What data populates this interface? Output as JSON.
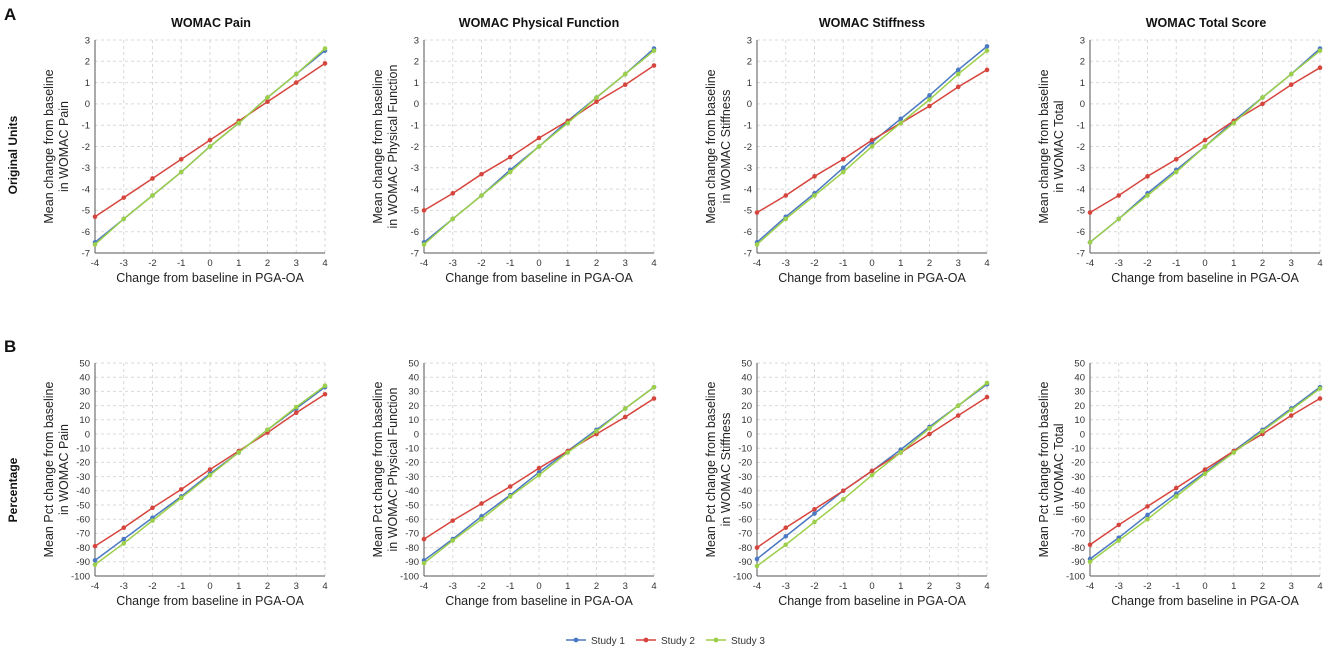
{
  "panel_tags": [
    "A",
    "B"
  ],
  "row_labels": [
    "Original Units",
    "Percentage"
  ],
  "column_titles": [
    "WOMAC Pain",
    "WOMAC Physical Function",
    "WOMAC Stiffness",
    "WOMAC Total Score"
  ],
  "legend": [
    {
      "name": "Study 1",
      "color": "#4a78c2"
    },
    {
      "name": "Study 2",
      "color": "#d6453d"
    },
    {
      "name": "Study 3",
      "color": "#9ccf4a"
    }
  ],
  "chart_data": [
    {
      "type": "line",
      "row": 0,
      "col": 0,
      "xlabel": "Change from baseline in PGA-OA",
      "ylabel": [
        "Mean change from baseline",
        "in WOMAC Pain"
      ],
      "x": [
        -4,
        -3,
        -2,
        -1,
        0,
        1,
        2,
        3,
        4
      ],
      "xlim": [
        -4,
        4
      ],
      "ylim": [
        -7,
        3
      ],
      "yticks": [
        -7,
        -6,
        -5,
        -4,
        -3,
        -2,
        -1,
        0,
        1,
        2,
        3
      ],
      "series": [
        {
          "name": "Study 1",
          "values": [
            -6.5,
            -5.4,
            -4.3,
            -3.2,
            -2.0,
            -0.9,
            0.3,
            1.4,
            2.5
          ]
        },
        {
          "name": "Study 2",
          "values": [
            -5.3,
            -4.4,
            -3.5,
            -2.6,
            -1.7,
            -0.8,
            0.1,
            1.0,
            1.9
          ]
        },
        {
          "name": "Study 3",
          "values": [
            -6.6,
            -5.4,
            -4.3,
            -3.2,
            -2.0,
            -0.9,
            0.3,
            1.4,
            2.6
          ]
        }
      ]
    },
    {
      "type": "line",
      "row": 0,
      "col": 1,
      "xlabel": "Change from baseline in PGA-OA",
      "ylabel": [
        "Mean change from baseline",
        "in WOMAC Physical Function"
      ],
      "x": [
        -4,
        -3,
        -2,
        -1,
        0,
        1,
        2,
        3,
        4
      ],
      "xlim": [
        -4,
        4
      ],
      "ylim": [
        -7,
        3
      ],
      "yticks": [
        -7,
        -6,
        -5,
        -4,
        -3,
        -2,
        -1,
        0,
        1,
        2,
        3
      ],
      "series": [
        {
          "name": "Study 1",
          "values": [
            -6.5,
            -5.4,
            -4.3,
            -3.1,
            -2.0,
            -0.8,
            0.3,
            1.4,
            2.6
          ]
        },
        {
          "name": "Study 2",
          "values": [
            -5.0,
            -4.2,
            -3.3,
            -2.5,
            -1.6,
            -0.8,
            0.1,
            0.9,
            1.8
          ]
        },
        {
          "name": "Study 3",
          "values": [
            -6.6,
            -5.4,
            -4.3,
            -3.2,
            -2.0,
            -0.9,
            0.3,
            1.4,
            2.5
          ]
        }
      ]
    },
    {
      "type": "line",
      "row": 0,
      "col": 2,
      "xlabel": "Change from baseline in PGA-OA",
      "ylabel": [
        "Mean change from baseline",
        "in WOMAC Stiffness"
      ],
      "x": [
        -4,
        -3,
        -2,
        -1,
        0,
        1,
        2,
        3,
        4
      ],
      "xlim": [
        -4,
        4
      ],
      "ylim": [
        -7,
        3
      ],
      "yticks": [
        -7,
        -6,
        -5,
        -4,
        -3,
        -2,
        -1,
        0,
        1,
        2,
        3
      ],
      "series": [
        {
          "name": "Study 1",
          "values": [
            -6.5,
            -5.3,
            -4.2,
            -3.0,
            -1.8,
            -0.7,
            0.4,
            1.6,
            2.7
          ]
        },
        {
          "name": "Study 2",
          "values": [
            -5.1,
            -4.3,
            -3.4,
            -2.6,
            -1.7,
            -0.9,
            -0.1,
            0.8,
            1.6
          ]
        },
        {
          "name": "Study 3",
          "values": [
            -6.6,
            -5.4,
            -4.3,
            -3.2,
            -2.0,
            -0.9,
            0.2,
            1.4,
            2.5
          ]
        }
      ]
    },
    {
      "type": "line",
      "row": 0,
      "col": 3,
      "xlabel": "Change from baseline in PGA-OA",
      "ylabel": [
        "Mean change from baseline",
        "in WOMAC Total"
      ],
      "x": [
        -4,
        -3,
        -2,
        -1,
        0,
        1,
        2,
        3,
        4
      ],
      "xlim": [
        -4,
        4
      ],
      "ylim": [
        -7,
        3
      ],
      "yticks": [
        -7,
        -6,
        -5,
        -4,
        -3,
        -2,
        -1,
        0,
        1,
        2,
        3
      ],
      "series": [
        {
          "name": "Study 1",
          "values": [
            -6.5,
            -5.4,
            -4.2,
            -3.1,
            -2.0,
            -0.8,
            0.3,
            1.4,
            2.6
          ]
        },
        {
          "name": "Study 2",
          "values": [
            -5.1,
            -4.3,
            -3.4,
            -2.6,
            -1.7,
            -0.8,
            0.0,
            0.9,
            1.7
          ]
        },
        {
          "name": "Study 3",
          "values": [
            -6.5,
            -5.4,
            -4.3,
            -3.2,
            -2.0,
            -0.9,
            0.3,
            1.4,
            2.5
          ]
        }
      ]
    },
    {
      "type": "line",
      "row": 1,
      "col": 0,
      "xlabel": "Change from baseline in PGA-OA",
      "ylabel": [
        "Mean Pct change from baseline",
        "in WOMAC Pain"
      ],
      "x": [
        -4,
        -3,
        -2,
        -1,
        0,
        1,
        2,
        3,
        4
      ],
      "xlim": [
        -4,
        4
      ],
      "ylim": [
        -100,
        50
      ],
      "yticks": [
        -100,
        -90,
        -80,
        -70,
        -60,
        -50,
        -40,
        -30,
        -20,
        -10,
        0,
        10,
        20,
        30,
        40,
        50
      ],
      "series": [
        {
          "name": "Study 1",
          "values": [
            -89,
            -74,
            -59,
            -44,
            -28,
            -13,
            3,
            18,
            33
          ]
        },
        {
          "name": "Study 2",
          "values": [
            -79,
            -66,
            -52,
            -39,
            -25,
            -12,
            1,
            15,
            28
          ]
        },
        {
          "name": "Study 3",
          "values": [
            -92,
            -77,
            -61,
            -45,
            -29,
            -13,
            3,
            19,
            34
          ]
        }
      ]
    },
    {
      "type": "line",
      "row": 1,
      "col": 1,
      "xlabel": "Change from baseline in PGA-OA",
      "ylabel": [
        "Mean Pct change from baseline",
        "in WOMAC Physical Function"
      ],
      "x": [
        -4,
        -3,
        -2,
        -1,
        0,
        1,
        2,
        3,
        4
      ],
      "xlim": [
        -4,
        4
      ],
      "ylim": [
        -100,
        50
      ],
      "yticks": [
        -100,
        -90,
        -80,
        -70,
        -60,
        -50,
        -40,
        -30,
        -20,
        -10,
        0,
        10,
        20,
        30,
        40,
        50
      ],
      "series": [
        {
          "name": "Study 1",
          "values": [
            -89,
            -74,
            -58,
            -43,
            -27,
            -12,
            3,
            18,
            33
          ]
        },
        {
          "name": "Study 2",
          "values": [
            -74,
            -61,
            -49,
            -37,
            -24,
            -12,
            0,
            12,
            25
          ]
        },
        {
          "name": "Study 3",
          "values": [
            -91,
            -75,
            -60,
            -44,
            -29,
            -13,
            2,
            18,
            33
          ]
        }
      ]
    },
    {
      "type": "line",
      "row": 1,
      "col": 2,
      "xlabel": "Change from baseline in PGA-OA",
      "ylabel": [
        "Mean Pct change from baseline",
        "in WOMAC Stiffness"
      ],
      "x": [
        -4,
        -3,
        -2,
        -1,
        0,
        1,
        2,
        3,
        4
      ],
      "xlim": [
        -4,
        4
      ],
      "ylim": [
        -100,
        50
      ],
      "yticks": [
        -100,
        -90,
        -80,
        -70,
        -60,
        -50,
        -40,
        -30,
        -20,
        -10,
        0,
        10,
        20,
        30,
        40,
        50
      ],
      "series": [
        {
          "name": "Study 1",
          "values": [
            -88,
            -72,
            -56,
            -40,
            -26,
            -11,
            5,
            20,
            35
          ]
        },
        {
          "name": "Study 2",
          "values": [
            -80,
            -66,
            -53,
            -40,
            -26,
            -13,
            0,
            13,
            26
          ]
        },
        {
          "name": "Study 3",
          "values": [
            -93,
            -78,
            -62,
            -46,
            -29,
            -13,
            4,
            20,
            36
          ]
        }
      ]
    },
    {
      "type": "line",
      "row": 1,
      "col": 3,
      "xlabel": "Change from baseline in PGA-OA",
      "ylabel": [
        "Mean Pct change from baseline",
        "in WOMAC Total"
      ],
      "x": [
        -4,
        -3,
        -2,
        -1,
        0,
        1,
        2,
        3,
        4
      ],
      "xlim": [
        -4,
        4
      ],
      "ylim": [
        -100,
        50
      ],
      "yticks": [
        -100,
        -90,
        -80,
        -70,
        -60,
        -50,
        -40,
        -30,
        -20,
        -10,
        0,
        10,
        20,
        30,
        40,
        50
      ],
      "series": [
        {
          "name": "Study 1",
          "values": [
            -88,
            -73,
            -57,
            -42,
            -27,
            -12,
            3,
            18,
            33
          ]
        },
        {
          "name": "Study 2",
          "values": [
            -78,
            -64,
            -51,
            -38,
            -25,
            -12,
            0,
            13,
            25
          ]
        },
        {
          "name": "Study 3",
          "values": [
            -90,
            -75,
            -60,
            -44,
            -28,
            -13,
            2,
            17,
            32
          ]
        }
      ]
    }
  ]
}
